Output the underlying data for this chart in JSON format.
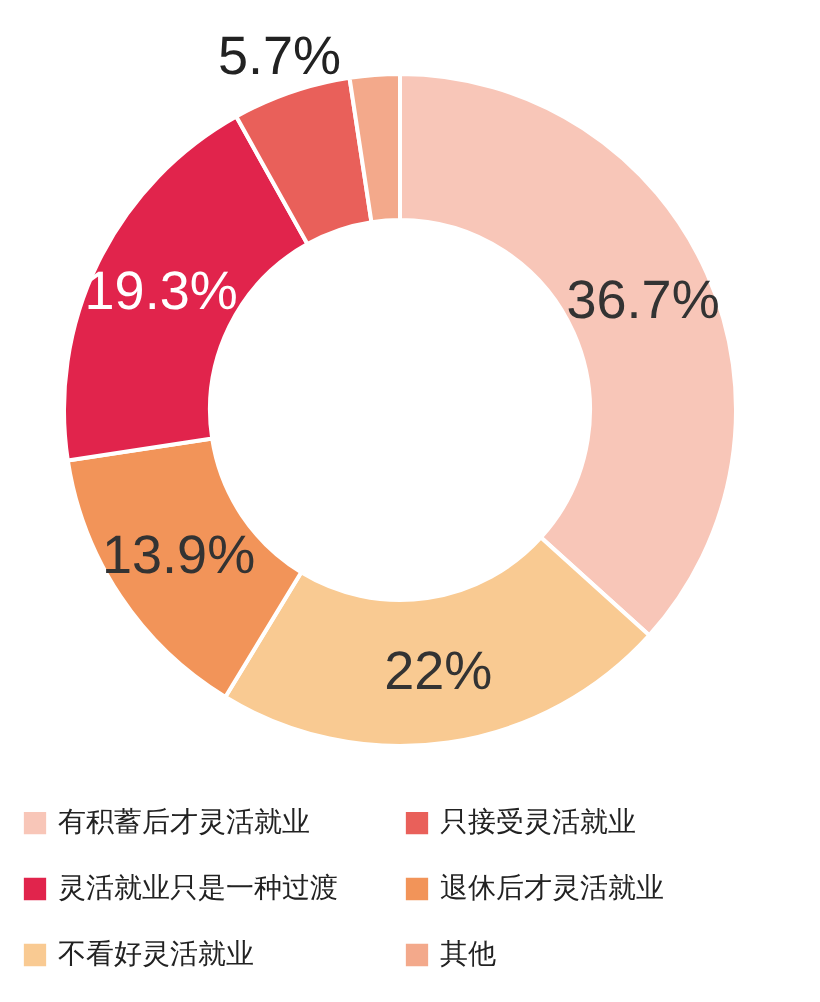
{
  "chart_data": {
    "type": "donut",
    "categories": [
      "有积蓄后才灵活就业",
      "不看好灵活就业",
      "退休后才灵活就业",
      "灵活就业只是一种过渡",
      "只接受灵活就业",
      "其他"
    ],
    "values": [
      36.7,
      22,
      13.9,
      19.3,
      5.7,
      2.4
    ],
    "colors": [
      "#f8c6b8",
      "#f9ca92",
      "#f29459",
      "#e1244c",
      "#e9605a",
      "#f3a98b"
    ],
    "value_labels": [
      "36.7%",
      "22%",
      "13.9%",
      "19.3%",
      "5.7%",
      null
    ],
    "legend": "bottom"
  }
}
